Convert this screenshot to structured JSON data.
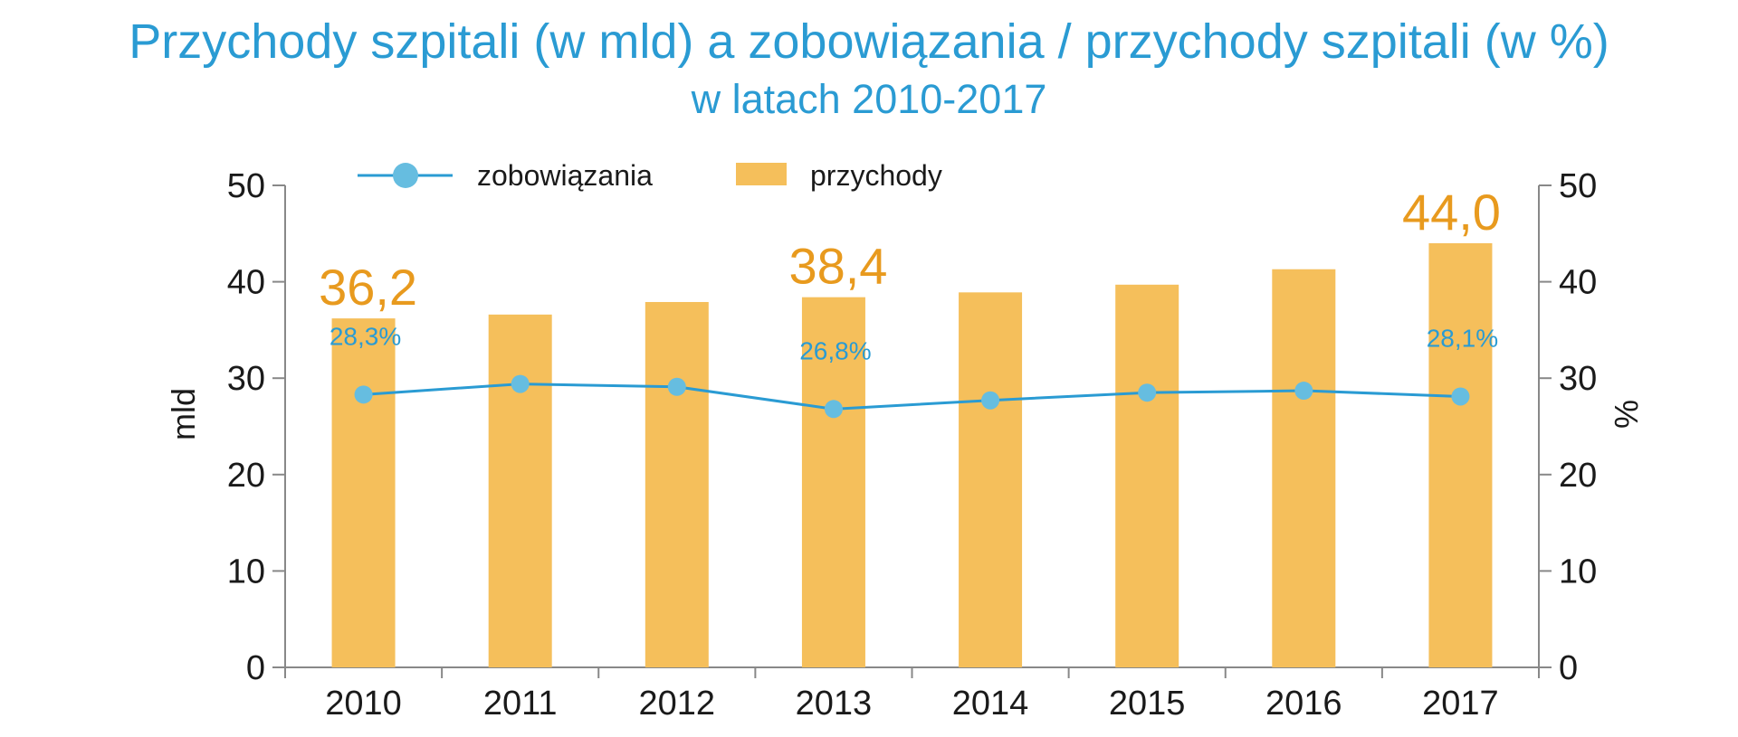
{
  "colors": {
    "title": "#2a9bd3",
    "bar": "#f5bf5b",
    "bar_label": "#e89a1e",
    "line": "#2a9bd3",
    "marker": "#66bde0",
    "axis": "#888888",
    "text": "#1a1a1a"
  },
  "chart_data": {
    "type": "bar",
    "title": "Przychody szpitali (w mld) a zobowiązania / przychody szpitali (w %)",
    "subtitle": "w latach 2010-2017",
    "categories": [
      "2010",
      "2011",
      "2012",
      "2013",
      "2014",
      "2015",
      "2016",
      "2017"
    ],
    "ylabel_left": "mld",
    "ylabel_right": "%",
    "ylim_left": [
      0,
      50
    ],
    "ylim_right": [
      0,
      50
    ],
    "yticks_left": [
      "0",
      "10",
      "20",
      "30",
      "40",
      "50"
    ],
    "yticks_right": [
      "0",
      "10",
      "20",
      "30",
      "40",
      "50"
    ],
    "grid": false,
    "legend_position": "top",
    "legend": [
      "zobowiązania",
      "przychody"
    ],
    "series": [
      {
        "name": "przychody",
        "type": "bar",
        "axis": "left",
        "values": [
          36.2,
          36.6,
          37.9,
          38.4,
          38.9,
          39.7,
          41.3,
          44.0
        ],
        "data_labels": [
          "36,2",
          "",
          "",
          "38,4",
          "",
          "",
          "",
          "44,0"
        ]
      },
      {
        "name": "zobowiązania",
        "type": "line",
        "axis": "right",
        "values": [
          28.3,
          29.4,
          29.1,
          26.8,
          27.7,
          28.5,
          28.7,
          28.1
        ],
        "data_labels": [
          "28,3%",
          "",
          "",
          "26,8%",
          "",
          "",
          "",
          "28,1%"
        ]
      }
    ]
  }
}
